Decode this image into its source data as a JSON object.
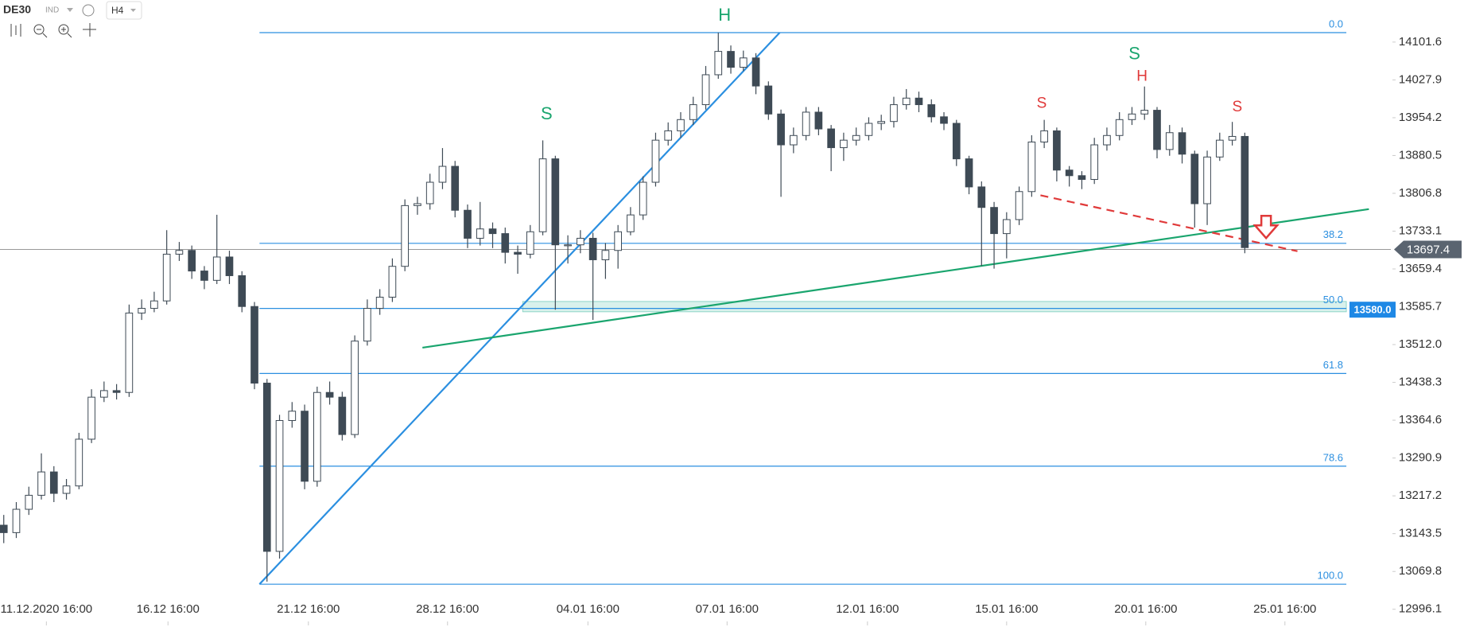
{
  "toolbar": {
    "symbol": "DE30",
    "market": "IND",
    "interval": "H4"
  },
  "chart_data": {
    "type": "candlestick",
    "open": [
      13160,
      13145.5,
      13191,
      13218.3,
      13263.8,
      13222,
      13236.5,
      13327.6,
      13409.5,
      13422.3,
      13418.7,
      13573.5,
      13582.6,
      13597.1,
      13688.2,
      13695.5,
      13655.4,
      13637.2,
      13682.7,
      13646.3,
      13586.2,
      13436.9,
      13109,
      13364,
      13382.2,
      13245.6,
      13418.7,
      13409.5,
      13336.7,
      13518.8,
      13582.6,
      13604.4,
      13664.5,
      13782.9,
      13786.6,
      13828.4,
      13859.4,
      13773.8,
      13719.2,
      13737.4,
      13728.3,
      13691.8,
      13688.2,
      13731.9,
      13874,
      13706.4,
      13706.4,
      13719.2,
      13677.3,
      13695.5,
      13731.9,
      13764.7,
      13828.4,
      13910.4,
      13928.6,
      13950.5,
      13979.6,
      14037.9,
      14083.4,
      14052.5,
      14070.7,
      14016,
      13961.4,
      13901.3,
      13919.5,
      13965,
      13932.3,
      13895.8,
      13910.4,
      13919.5,
      13943.2,
      13946.8,
      13979.6,
      13992.4,
      13979.6,
      13955.9,
      13943.2,
      13874,
      13819.3,
      13779.3,
      13728.3,
      13755.6,
      13810.2,
      13906.8,
      13928.6,
      13852.1,
      13841.2,
      13833.9,
      13901.3,
      13919.5,
      13950.5,
      13961.4,
      13968.7,
      13892.2,
      13925,
      13883.1,
      13786.6,
      13877.6,
      13910.4,
      13917.7
    ],
    "high": [
      13180,
      13205,
      13235,
      13300,
      13275,
      13250,
      13340,
      13425,
      13440,
      13435,
      13590,
      13600,
      13615,
      13735,
      13712,
      13705,
      13665,
      13765,
      13695,
      13655,
      13595,
      13445,
      13375,
      13400,
      13395,
      13430,
      13440,
      13420,
      13530,
      13600,
      13620,
      13680,
      13795,
      13800,
      13845,
      13895,
      13870,
      13785,
      13790,
      13750,
      13740,
      13705,
      13745,
      13910,
      13880,
      13725,
      13735,
      13730,
      13710,
      13745,
      13780,
      13840,
      13925,
      13945,
      13965,
      13995,
      14055,
      14120,
      14095,
      14085,
      14080,
      14025,
      13970,
      13935,
      13975,
      13975,
      13940,
      13925,
      13935,
      13955,
      13960,
      13995,
      14010,
      14005,
      13990,
      13965,
      13950,
      13880,
      13830,
      13790,
      13770,
      13820,
      13920,
      13950,
      13935,
      13860,
      13850,
      13915,
      13935,
      13965,
      13975,
      14015,
      13975,
      13940,
      13935,
      13890,
      13890,
      13925,
      13946,
      13925
    ],
    "low": [
      13125,
      13135,
      13180,
      13210,
      13205,
      13210,
      13230,
      13320,
      13400,
      13405,
      13410,
      13560,
      13575,
      13590,
      13675,
      13640,
      13620,
      13630,
      13630,
      13575,
      13425,
      13050,
      13095,
      13350,
      13230,
      13235,
      13395,
      13325,
      13330,
      13510,
      13570,
      13595,
      13655,
      13765,
      13775,
      13815,
      13760,
      13700,
      13705,
      13700,
      13670,
      13650,
      13680,
      13725,
      13580,
      13670,
      13690,
      13560,
      13640,
      13660,
      13725,
      13755,
      13820,
      13900,
      13915,
      13940,
      13970,
      14030,
      14040,
      14045,
      14000,
      13950,
      13800,
      13885,
      13910,
      13920,
      13850,
      13870,
      13900,
      13910,
      13930,
      13935,
      13970,
      13965,
      13945,
      13930,
      13860,
      13805,
      13665,
      13660,
      13680,
      13745,
      13800,
      13895,
      13830,
      13820,
      13815,
      13825,
      13890,
      13910,
      13940,
      13950,
      13875,
      13880,
      13865,
      13740,
      13745,
      13870,
      13900,
      13690
    ],
    "close": [
      13145.5,
      13191,
      13218.3,
      13263.8,
      13222,
      13236.5,
      13327.6,
      13409.5,
      13422.3,
      13418.7,
      13573.5,
      13582.6,
      13597.1,
      13688.2,
      13695.5,
      13655.4,
      13637.2,
      13682.7,
      13646.3,
      13586.2,
      13436.9,
      13109,
      13364,
      13382.2,
      13245.6,
      13418.7,
      13409.5,
      13336.7,
      13518.8,
      13582.6,
      13604.4,
      13664.5,
      13782.9,
      13786.6,
      13828.4,
      13859.4,
      13773.8,
      13719.2,
      13737.4,
      13728.3,
      13691.8,
      13688.2,
      13731.9,
      13874,
      13706.4,
      13706.4,
      13719.2,
      13677.3,
      13695.5,
      13731.9,
      13764.7,
      13828.4,
      13910.4,
      13928.6,
      13950.5,
      13979.6,
      14037.9,
      14083.4,
      14052.5,
      14070.7,
      14016,
      13961.4,
      13901.3,
      13919.5,
      13965,
      13932.3,
      13895.8,
      13910.4,
      13919.5,
      13943.2,
      13946.8,
      13979.6,
      13992.4,
      13979.6,
      13955.9,
      13943.2,
      13874,
      13819.3,
      13779.3,
      13728.3,
      13755.6,
      13810.2,
      13906.8,
      13928.6,
      13852.1,
      13841.2,
      13833.9,
      13901.3,
      13919.5,
      13950.5,
      13961.4,
      13968.7,
      13892.2,
      13925,
      13883.1,
      13786.6,
      13877.6,
      13910.4,
      13917.7,
      13701
    ],
    "up_color": "#ffffff",
    "down_color": "#3e4a55",
    "wick_color": "#3e4a55",
    "xlim": [
      -0.3,
      110.65
    ],
    "ylim": [
      12972.4,
      14183.6
    ],
    "xticks": [
      {
        "value": 3.4,
        "label": "11.12.2020 16:00"
      },
      {
        "value": 13.1,
        "label": "16.12 16:00"
      },
      {
        "value": 24.3,
        "label": "21.12 16:00"
      },
      {
        "value": 35.4,
        "label": "28.12 16:00"
      },
      {
        "value": 46.6,
        "label": "04.01 16:00"
      },
      {
        "value": 57.7,
        "label": "07.01 16:00"
      },
      {
        "value": 68.9,
        "label": "12.01 16:00"
      },
      {
        "value": 80.0,
        "label": "15.01 16:00"
      },
      {
        "value": 91.1,
        "label": "20.01 16:00"
      },
      {
        "value": 102.2,
        "label": "25.01 16:00"
      }
    ],
    "yticks": [
      14101.6,
      14027.9,
      13954.2,
      13880.5,
      13806.8,
      13733.1,
      13659.4,
      13585.7,
      {
        "value": 13512,
        "label": "13512.0"
      },
      13438.3,
      13364.6,
      13290.9,
      13217.2,
      13143.5,
      13069.8,
      12996.1
    ],
    "last_price": 13697.4,
    "price_tag": {
      "value": 13580,
      "label": "13580.0"
    },
    "zone": {
      "x_start": 41.4,
      "top": 13596,
      "bottom": 13576
    },
    "fib": {
      "high": 14120,
      "low": 13045,
      "x_start": 20.4,
      "x_end": 107.1,
      "color": "#2b8fe0",
      "levels": [
        {
          "value": 0,
          "label": "0.0"
        },
        38.2,
        {
          "value": 50,
          "label": "50.0"
        },
        61.8,
        78.6,
        {
          "value": 100,
          "label": "100.0"
        }
      ]
    },
    "trendlines": [
      {
        "color": "#2b8fe0",
        "dashed": false,
        "x": [
          20.4,
          61.9
        ],
        "y": [
          13045,
          14120
        ]
      },
      {
        "color": "#1aa56e",
        "dashed": false,
        "x": [
          33.4,
          108.9
        ],
        "y": [
          13506,
          13776
        ]
      },
      {
        "color": "#e03a3a",
        "dashed": true,
        "x": [
          82.7,
          103.2
        ],
        "y": [
          13803,
          13694
        ]
      }
    ],
    "annotations": [
      {
        "text": "H",
        "color": "#1aa56e",
        "x": 57.5,
        "y": 14152.6
      },
      {
        "text": "S",
        "color": "#1aa56e",
        "x": 43.3,
        "y": 13960
      },
      {
        "text": "S",
        "color": "#1aa56e",
        "x": 90.2,
        "y": 14077
      },
      {
        "text": "S",
        "color": "#e03a3a",
        "x": 82.8,
        "y": 13981
      },
      {
        "text": "H",
        "color": "#e03a3a",
        "x": 90.8,
        "y": 14034
      },
      {
        "text": "S",
        "color": "#e03a3a",
        "x": 98.4,
        "y": 13974
      }
    ],
    "arrow": {
      "x": 100.7,
      "y": 13732,
      "color": "#e03a3a"
    }
  }
}
